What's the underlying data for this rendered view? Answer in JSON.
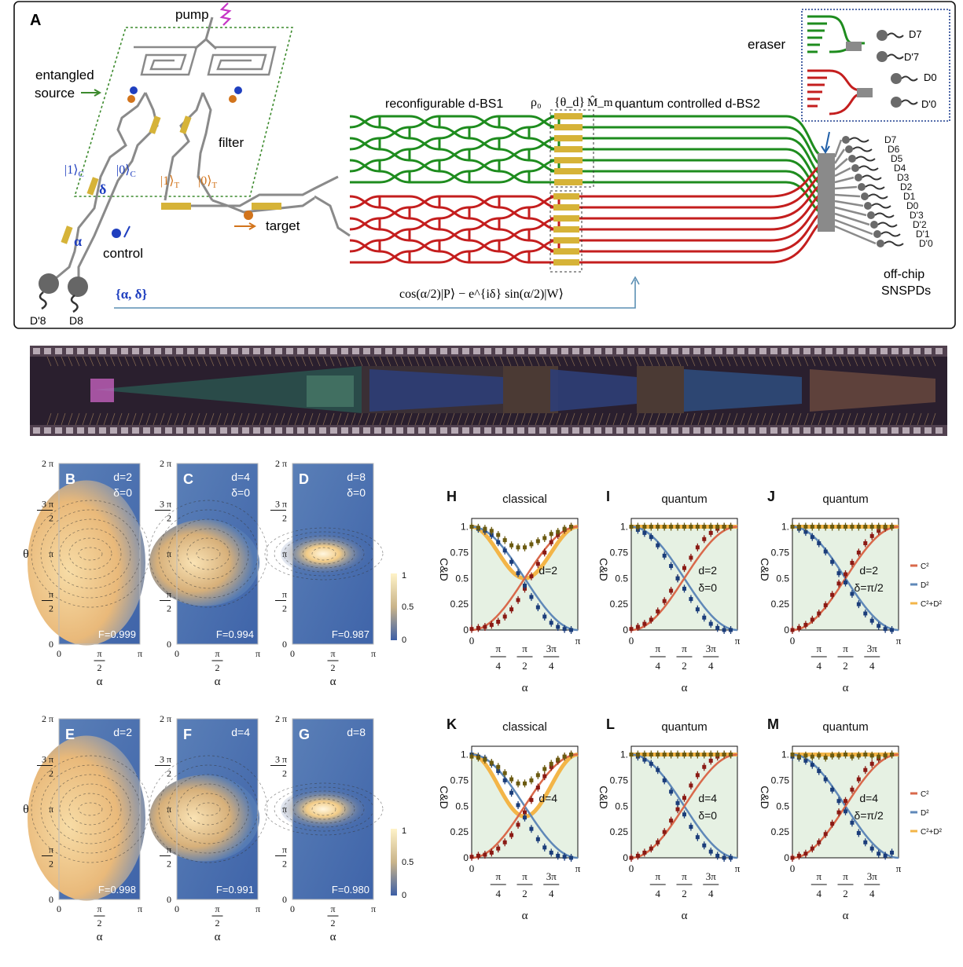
{
  "panelA": {
    "label": "A",
    "pump": "pump",
    "entangled_source": [
      "entangled",
      "source"
    ],
    "filter": "filter",
    "ket1c": "|1⟩",
    "ket1c_sub": "C",
    "ket0c": "|0⟩",
    "ket0c_sub": "C",
    "ket1t": "|1⟩",
    "ket1t_sub": "T",
    "ket0t": "|0⟩",
    "ket0t_sub": "T",
    "delta": "δ",
    "alpha": "α",
    "control": "control",
    "target": "target",
    "bs1": "reconfigurable d-BS1",
    "rho0": "ρ₀",
    "theta_d": "{θ_d}",
    "m_hat": "M̂_m",
    "bs2": "quantum controlled d-BS2",
    "eraser": "eraser",
    "eraser_detectors": [
      "D7",
      "D'7",
      "D0",
      "D'0"
    ],
    "detectors": [
      "D7",
      "D6",
      "D5",
      "D4",
      "D3",
      "D2",
      "D1",
      "D0",
      "D'3",
      "D'2",
      "D'1",
      "D'0"
    ],
    "snspd": [
      "off-chip",
      "SNSPDs"
    ],
    "bottom_detectors": [
      "D'8",
      "D8"
    ],
    "params": "{α, δ}",
    "formula": "cos(α/2)|P⟩ − e^{iδ} sin(α/2)|W⟩",
    "colors": {
      "green": "#1e8c1e",
      "red": "#c41e1e",
      "gold": "#d6b338",
      "blue": "#1f3fbf",
      "orange": "#d2741c",
      "grey": "#8a8a8a"
    }
  },
  "chip_photo": {
    "name": "integrated chip micrograph"
  },
  "heatmaps": {
    "theta_label": "θ",
    "alpha_label": "α",
    "y_ticks": [
      "2 π",
      "3 π",
      "2",
      "π",
      "π",
      "2",
      "0"
    ],
    "x_ticks": [
      "0",
      "π",
      "2",
      "π"
    ],
    "colorbar": [
      "1",
      "0.5",
      "0"
    ],
    "panels": [
      {
        "label": "B",
        "d": "d=2",
        "delta": "δ=0",
        "F": "F=0.999"
      },
      {
        "label": "C",
        "d": "d=4",
        "delta": "δ=0",
        "F": "F=0.994"
      },
      {
        "label": "D",
        "d": "d=8",
        "delta": "δ=0",
        "F": "F=0.987"
      },
      {
        "label": "E",
        "d": "d=2",
        "delta": "",
        "F": "F=0.998"
      },
      {
        "label": "F",
        "d": "d=4",
        "delta": "",
        "F": "F=0.991"
      },
      {
        "label": "G",
        "d": "d=8",
        "delta": "",
        "F": "F=0.980"
      }
    ]
  },
  "chart_data": [
    {
      "type": "line",
      "label": "H",
      "title": "classical",
      "annot": [
        "d=2"
      ],
      "ylabel": "C&D",
      "xlabel": "α",
      "x_ticks": [
        "0",
        "π/4",
        "π/2",
        "3π/4",
        "π"
      ],
      "y_ticks": [
        "0",
        "0.25",
        "0.5",
        "0.75",
        "1."
      ],
      "xlim": [
        0,
        3.1416
      ],
      "ylim": [
        0,
        1.08
      ],
      "series": [
        {
          "key": "C2",
          "values": [
            0.0,
            0.01,
            0.05,
            0.18,
            0.35,
            0.55,
            0.78,
            0.95,
            1.0
          ]
        },
        {
          "key": "D2",
          "values": [
            1.0,
            0.98,
            0.9,
            0.75,
            0.58,
            0.4,
            0.2,
            0.06,
            0.0
          ]
        },
        {
          "key": "C2+D2",
          "values": [
            1.0,
            0.98,
            0.95,
            0.88,
            0.88,
            0.9,
            0.94,
            0.98,
            1.0
          ]
        }
      ],
      "points_x": [
        0.0,
        0.196,
        0.393,
        0.589,
        0.785,
        0.982,
        1.178,
        1.374,
        1.571,
        1.767,
        1.963,
        2.159,
        2.356,
        2.553,
        2.749,
        2.945
      ],
      "points": [
        {
          "key": "C2",
          "values": [
            0.01,
            0.02,
            0.03,
            0.05,
            0.08,
            0.13,
            0.2,
            0.29,
            0.4,
            0.52,
            0.64,
            0.75,
            0.85,
            0.92,
            0.97,
            1.0
          ]
        },
        {
          "key": "D2",
          "values": [
            1.0,
            0.98,
            0.96,
            0.92,
            0.85,
            0.77,
            0.66,
            0.55,
            0.43,
            0.32,
            0.22,
            0.13,
            0.07,
            0.03,
            0.01,
            0.0
          ]
        },
        {
          "key": "C2+D2",
          "values": [
            1.0,
            0.99,
            0.98,
            0.96,
            0.92,
            0.87,
            0.82,
            0.8,
            0.8,
            0.83,
            0.86,
            0.89,
            0.93,
            0.95,
            0.98,
            1.0
          ]
        }
      ]
    },
    {
      "type": "line",
      "label": "I",
      "title": "quantum",
      "annot": [
        "d=2",
        "δ=0"
      ],
      "ylabel": "C&D",
      "xlabel": "α",
      "x_ticks": [
        "0",
        "π/4",
        "π/2",
        "3π/4",
        "π"
      ],
      "y_ticks": [
        "0",
        "0.25",
        "0.5",
        "0.75",
        "1."
      ],
      "xlim": [
        0,
        3.1416
      ],
      "ylim": [
        0,
        1.08
      ],
      "points_x": [
        0.0,
        0.196,
        0.393,
        0.589,
        0.785,
        0.982,
        1.178,
        1.374,
        1.571,
        1.767,
        1.963,
        2.159,
        2.356,
        2.553,
        2.749,
        2.945
      ],
      "points": [
        {
          "key": "C2",
          "values": [
            0.01,
            0.03,
            0.06,
            0.1,
            0.18,
            0.28,
            0.38,
            0.5,
            0.6,
            0.7,
            0.8,
            0.88,
            0.94,
            0.98,
            1.0,
            1.0
          ]
        },
        {
          "key": "D2",
          "values": [
            1.0,
            0.97,
            0.94,
            0.9,
            0.82,
            0.72,
            0.62,
            0.5,
            0.4,
            0.3,
            0.2,
            0.12,
            0.06,
            0.02,
            0.0,
            0.0
          ]
        },
        {
          "key": "C2+D2",
          "values": [
            1.0,
            1.0,
            1.0,
            1.0,
            1.0,
            1.0,
            1.0,
            1.0,
            1.0,
            1.0,
            1.0,
            1.0,
            1.0,
            1.0,
            1.0,
            1.0
          ]
        }
      ]
    },
    {
      "type": "line",
      "label": "J",
      "title": "quantum",
      "annot": [
        "d=2",
        "δ=π/2"
      ],
      "ylabel": "C&D",
      "xlabel": "α",
      "x_ticks": [
        "0",
        "π/4",
        "π/2",
        "3π/4",
        "π"
      ],
      "y_ticks": [
        "0",
        "0.25",
        "0.5",
        "0.75",
        "1."
      ],
      "xlim": [
        0,
        3.1416
      ],
      "ylim": [
        0,
        1.08
      ],
      "legend": [
        "C²",
        "D²",
        "C²+D²"
      ],
      "points_x": [
        0.0,
        0.196,
        0.393,
        0.589,
        0.785,
        0.982,
        1.178,
        1.374,
        1.571,
        1.767,
        1.963,
        2.159,
        2.356,
        2.553,
        2.749,
        2.945
      ],
      "points": [
        {
          "key": "C2",
          "values": [
            0.0,
            0.02,
            0.05,
            0.1,
            0.16,
            0.24,
            0.34,
            0.45,
            0.54,
            0.65,
            0.75,
            0.84,
            0.91,
            0.96,
            0.99,
            1.0
          ]
        },
        {
          "key": "D2",
          "values": [
            1.0,
            0.98,
            0.95,
            0.9,
            0.84,
            0.76,
            0.66,
            0.55,
            0.46,
            0.35,
            0.25,
            0.16,
            0.09,
            0.04,
            0.01,
            0.0
          ]
        },
        {
          "key": "C2+D2",
          "values": [
            1.0,
            1.0,
            1.0,
            1.0,
            1.0,
            1.0,
            1.0,
            1.0,
            1.0,
            1.0,
            1.0,
            1.0,
            1.0,
            1.0,
            1.0,
            1.0
          ]
        }
      ]
    },
    {
      "type": "line",
      "label": "K",
      "title": "classical",
      "annot": [
        "d=4"
      ],
      "ylabel": "C&D",
      "xlabel": "α",
      "x_ticks": [
        "0",
        "π/4",
        "π/2",
        "3π/4",
        "π"
      ],
      "y_ticks": [
        "0",
        "0.25",
        "0.5",
        "0.75",
        "1."
      ],
      "xlim": [
        0,
        3.1416
      ],
      "ylim": [
        0,
        1.08
      ],
      "points_x": [
        0.0,
        0.196,
        0.393,
        0.589,
        0.785,
        0.982,
        1.178,
        1.374,
        1.571,
        1.767,
        1.963,
        2.159,
        2.356,
        2.553,
        2.749,
        2.945
      ],
      "points": [
        {
          "key": "C2",
          "values": [
            0.01,
            0.02,
            0.03,
            0.05,
            0.09,
            0.15,
            0.22,
            0.32,
            0.44,
            0.56,
            0.68,
            0.79,
            0.88,
            0.94,
            0.98,
            1.0
          ]
        },
        {
          "key": "D2",
          "values": [
            1.0,
            0.98,
            0.96,
            0.91,
            0.84,
            0.75,
            0.63,
            0.51,
            0.39,
            0.28,
            0.18,
            0.1,
            0.05,
            0.02,
            0.01,
            0.0
          ]
        },
        {
          "key": "C2+D2",
          "values": [
            0.98,
            0.97,
            0.95,
            0.92,
            0.88,
            0.82,
            0.76,
            0.72,
            0.72,
            0.75,
            0.8,
            0.86,
            0.91,
            0.95,
            0.98,
            1.0
          ]
        }
      ]
    },
    {
      "type": "line",
      "label": "L",
      "title": "quantum",
      "annot": [
        "d=4",
        "δ=0"
      ],
      "ylabel": "C&D",
      "xlabel": "α",
      "x_ticks": [
        "0",
        "π/4",
        "π/2",
        "3π/4",
        "π"
      ],
      "y_ticks": [
        "0",
        "0.25",
        "0.5",
        "0.75",
        "1."
      ],
      "xlim": [
        0,
        3.1416
      ],
      "ylim": [
        0,
        1.08
      ],
      "points_x": [
        0.0,
        0.196,
        0.393,
        0.589,
        0.785,
        0.982,
        1.178,
        1.374,
        1.571,
        1.767,
        1.963,
        2.159,
        2.356,
        2.553,
        2.749,
        2.945
      ],
      "points": [
        {
          "key": "C2",
          "values": [
            0.0,
            0.02,
            0.05,
            0.09,
            0.15,
            0.25,
            0.36,
            0.47,
            0.58,
            0.7,
            0.8,
            0.88,
            0.94,
            0.98,
            1.0,
            1.0
          ]
        },
        {
          "key": "D2",
          "values": [
            1.0,
            0.98,
            0.95,
            0.91,
            0.85,
            0.75,
            0.64,
            0.53,
            0.42,
            0.3,
            0.2,
            0.12,
            0.06,
            0.02,
            0.0,
            0.0
          ]
        },
        {
          "key": "C2+D2",
          "values": [
            1.0,
            1.0,
            1.0,
            1.0,
            1.0,
            1.0,
            1.0,
            1.0,
            1.0,
            1.0,
            1.0,
            1.0,
            1.0,
            1.0,
            1.0,
            1.0
          ]
        }
      ]
    },
    {
      "type": "line",
      "label": "M",
      "title": "quantum",
      "annot": [
        "d=4",
        "δ=π/2"
      ],
      "ylabel": "C&D",
      "xlabel": "α",
      "x_ticks": [
        "0",
        "π/4",
        "π/2",
        "3π/4",
        "π"
      ],
      "y_ticks": [
        "0",
        "0.25",
        "0.5",
        "0.75",
        "1."
      ],
      "xlim": [
        0,
        3.1416
      ],
      "ylim": [
        0,
        1.08
      ],
      "legend": [
        "C²",
        "D²",
        "C²+D²"
      ],
      "points_x": [
        0.0,
        0.196,
        0.393,
        0.589,
        0.785,
        0.982,
        1.178,
        1.374,
        1.571,
        1.767,
        1.963,
        2.159,
        2.356,
        2.553,
        2.749,
        2.945
      ],
      "points": [
        {
          "key": "C2",
          "values": [
            0.0,
            0.02,
            0.04,
            0.09,
            0.15,
            0.23,
            0.33,
            0.44,
            0.55,
            0.66,
            0.76,
            0.85,
            0.91,
            0.96,
            0.99,
            1.0
          ]
        },
        {
          "key": "D2",
          "values": [
            0.98,
            0.97,
            0.94,
            0.9,
            0.84,
            0.76,
            0.66,
            0.55,
            0.45,
            0.34,
            0.24,
            0.15,
            0.09,
            0.04,
            0.02,
            0.05
          ]
        },
        {
          "key": "C2+D2",
          "values": [
            1.0,
            0.98,
            0.99,
            0.98,
            0.99,
            0.97,
            0.99,
            0.99,
            1.0,
            0.98,
            0.99,
            1.0,
            0.99,
            0.98,
            0.99,
            1.0
          ]
        }
      ]
    }
  ],
  "series_colors": {
    "C2": "#d9694b",
    "D2": "#5f88b8",
    "C2+D2": "#f3b548",
    "C2_pt": "#8a1a14",
    "D2_pt": "#1b3d7a",
    "C2+D2_pt": "#6b5a10",
    "fill": "#e6f1e3"
  }
}
